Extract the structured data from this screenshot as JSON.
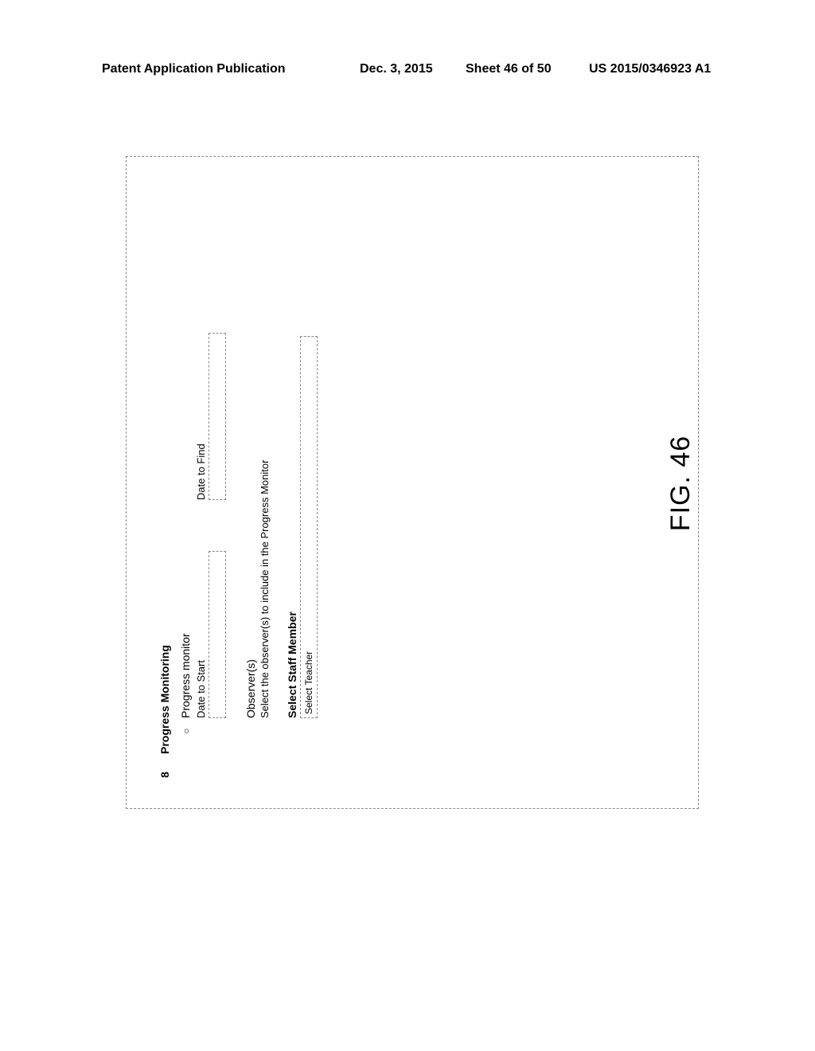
{
  "header": {
    "left": "Patent Application Publication",
    "date": "Dec. 3, 2015",
    "sheet": "Sheet 46 of 50",
    "pubnum": "US 2015/0346923 A1"
  },
  "figure": {
    "caption": "FIG. 46",
    "number": "8",
    "section_title": "Progress Monitoring",
    "bullet": "○",
    "sub_heading": "Progress monitor",
    "date_start_label": "Date to Start",
    "date_find_label": "Date to Find",
    "observers_label": "Observer(s)",
    "observers_desc": "Select the observer(s) to include in the Progress Monitor",
    "staff_label": "Select Staff Member",
    "staff_placeholder": "Select Teacher"
  }
}
